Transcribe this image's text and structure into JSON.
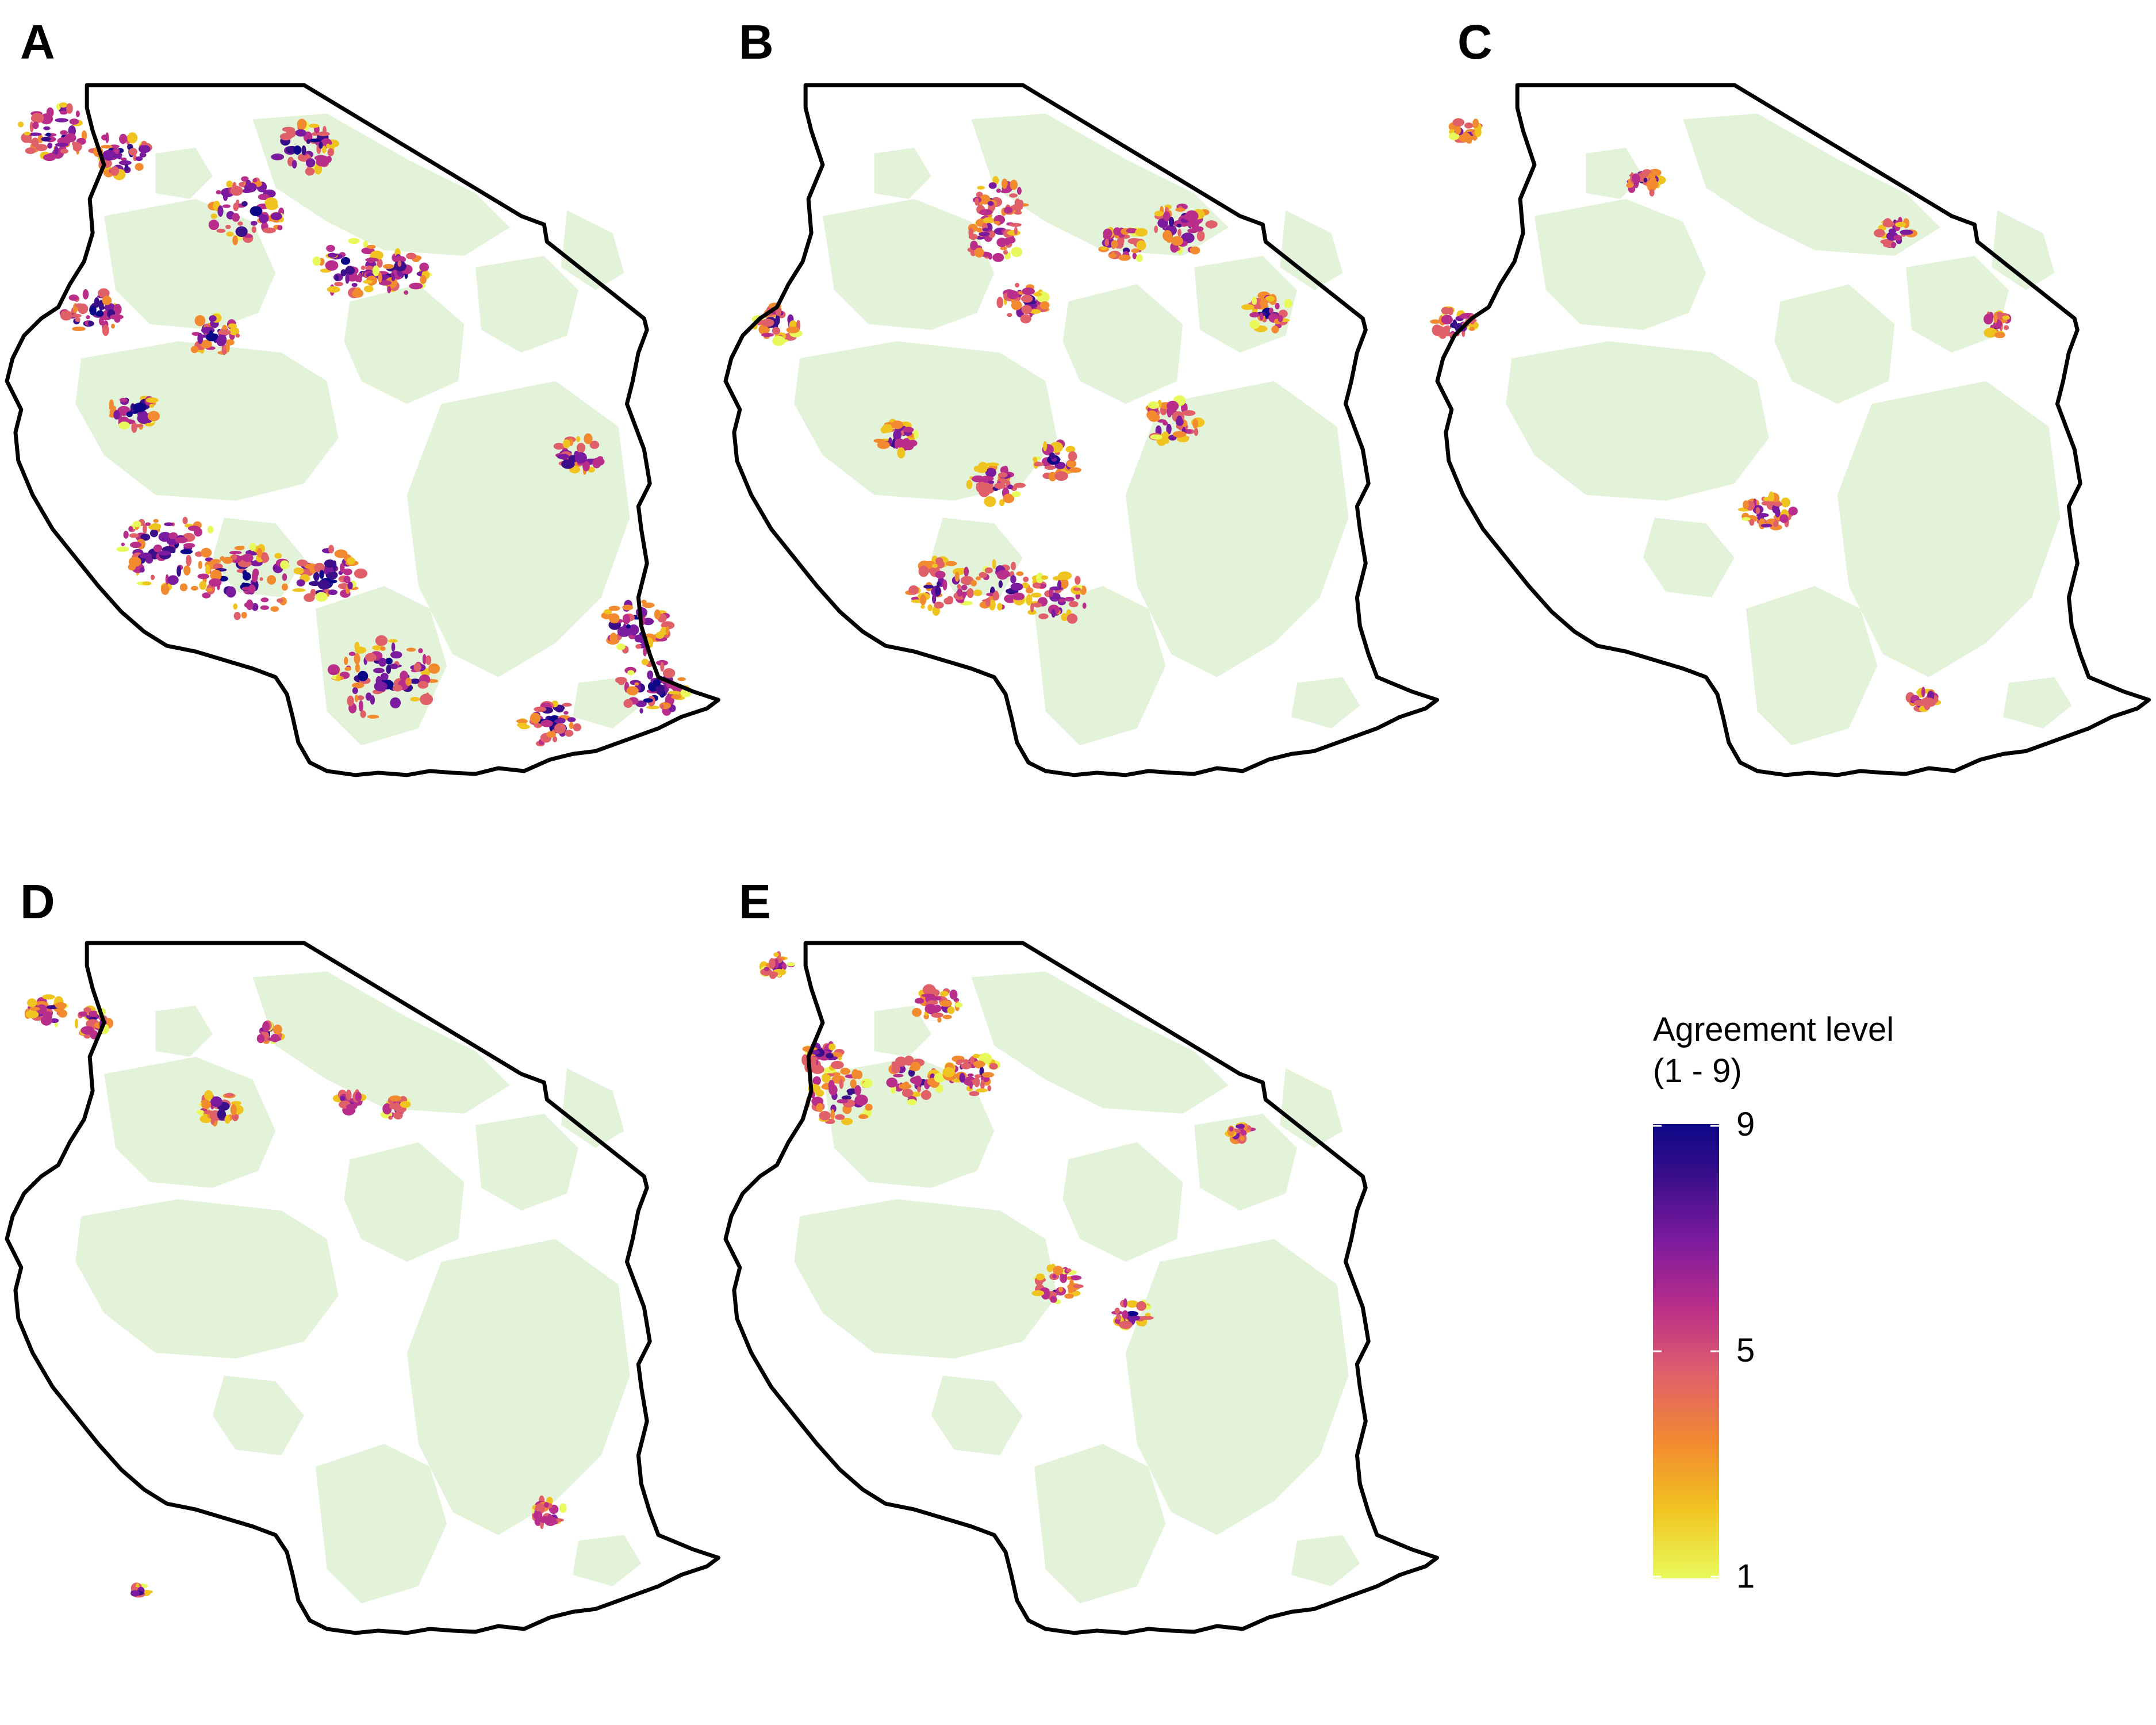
{
  "panels": [
    {
      "label": "A",
      "density": "high"
    },
    {
      "label": "B",
      "density": "medium"
    },
    {
      "label": "C",
      "density": "low"
    },
    {
      "label": "D",
      "density": "low"
    },
    {
      "label": "E",
      "density": "medium"
    }
  ],
  "legend": {
    "title_line1": "Agreement level",
    "title_line2": "(1 - 9)",
    "min": 1,
    "max": 9,
    "ticks": [
      {
        "value": 9,
        "label": "9"
      },
      {
        "value": 5,
        "label": "5"
      },
      {
        "value": 1,
        "label": "1"
      }
    ],
    "colors": [
      "#e8fa5b",
      "#f0c420",
      "#f28a30",
      "#e0606a",
      "#b82e8a",
      "#7a1a9e",
      "#3c0f8a",
      "#0d0887"
    ]
  },
  "colors": {
    "protected_area_fill": "#e2f3da",
    "outline": "#000000",
    "background": "#ffffff"
  }
}
